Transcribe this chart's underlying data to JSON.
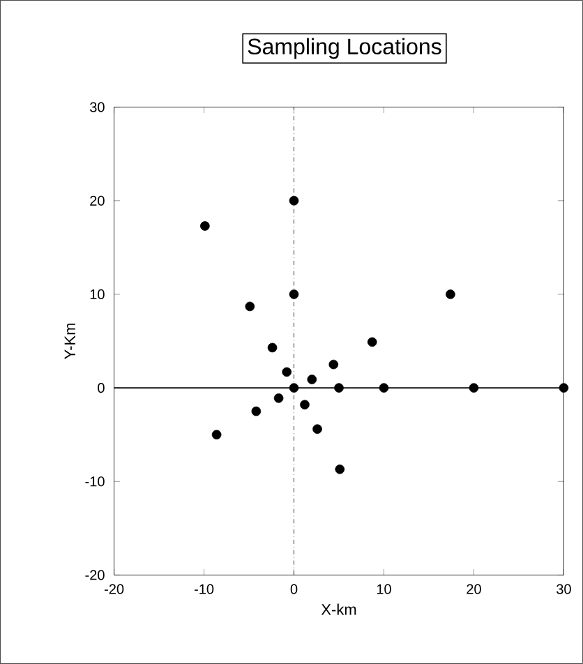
{
  "chart_data": {
    "type": "scatter",
    "title": "Sampling Locations",
    "xlabel": "X-km",
    "ylabel": "Y-Km",
    "x": [
      -9.9,
      0,
      0,
      17.4,
      -4.9,
      8.7,
      -2.4,
      4.4,
      -0.8,
      2.0,
      0,
      5,
      10,
      20,
      30,
      -1.7,
      1.2,
      -4.2,
      2.6,
      -8.6,
      5.1
    ],
    "values": [
      17.3,
      20,
      10,
      10,
      8.7,
      4.9,
      4.3,
      2.5,
      1.7,
      0.9,
      0,
      0,
      0,
      0,
      0,
      -1.1,
      -1.8,
      -2.5,
      -4.4,
      -5.0,
      -8.7
    ],
    "color": "#000000",
    "marker": "circle",
    "xlim": [
      -20,
      30
    ],
    "ylim": [
      -20,
      30
    ],
    "xticks": [
      -20,
      -10,
      0,
      10,
      20,
      30
    ],
    "yticks": [
      -20,
      -10,
      0,
      10,
      20,
      30
    ],
    "ref_lines": [
      {
        "axis": "y",
        "value": 0,
        "line_style": "solid"
      },
      {
        "axis": "x",
        "value": 0,
        "line_style": "dashdotted"
      }
    ]
  }
}
